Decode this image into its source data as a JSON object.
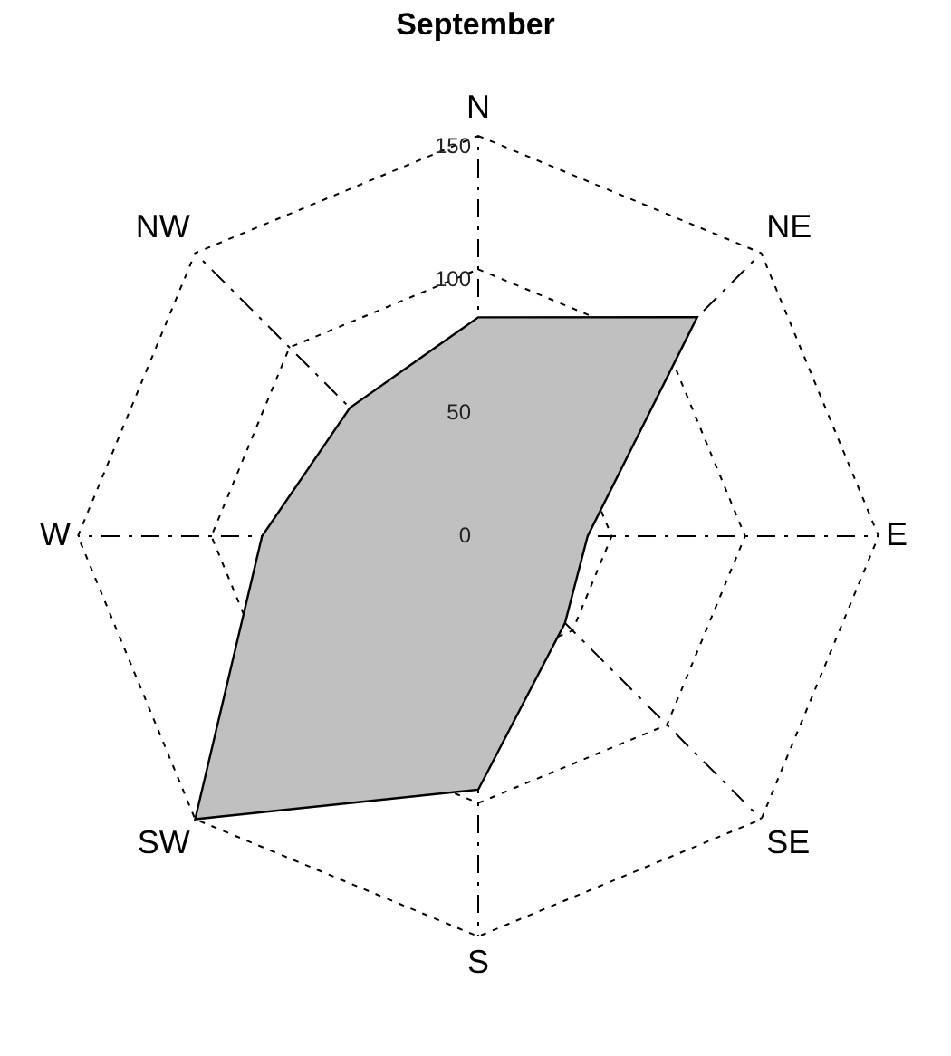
{
  "chart_data": {
    "type": "radar",
    "title": "September",
    "categories": [
      "N",
      "NE",
      "E",
      "SE",
      "S",
      "SW",
      "W",
      "NW"
    ],
    "series": [
      {
        "color": "#c0c0c0",
        "values": [
          82,
          116,
          41,
          46,
          95,
          150,
          81,
          68
        ]
      }
    ],
    "ylim": [
      0,
      150
    ],
    "yticks": [
      0,
      50,
      100,
      150
    ],
    "grid": true,
    "legend": false,
    "marker": "none"
  }
}
